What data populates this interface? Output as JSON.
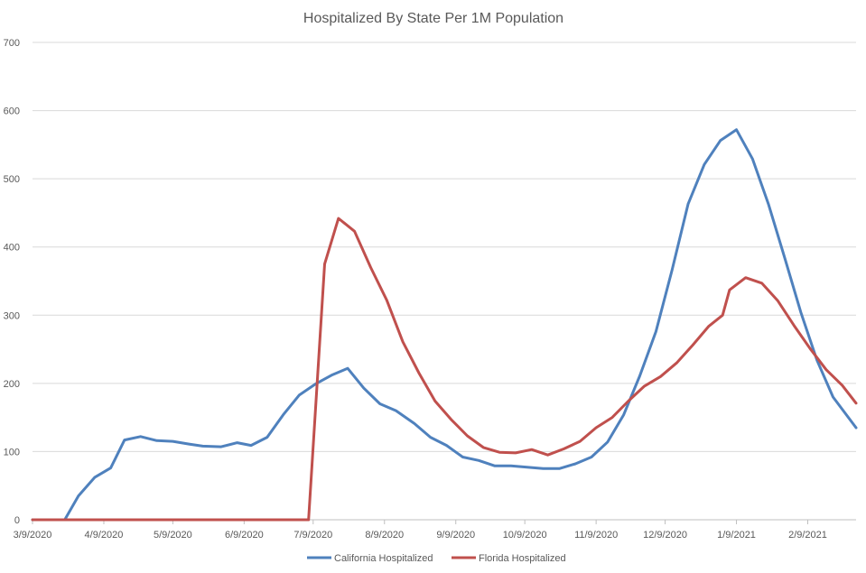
{
  "chart_data": {
    "type": "line",
    "title": "Hospitalized By State Per 1M Population",
    "xlabel": "",
    "ylabel": "",
    "ylim": [
      0,
      700
    ],
    "y_ticks": [
      "0",
      "100",
      "200",
      "300",
      "400",
      "500",
      "600",
      "700"
    ],
    "x_range": [
      "2020-03-09",
      "2021-03-02"
    ],
    "x_ticks": [
      {
        "label": "3/9/2020",
        "date": "2020-03-09"
      },
      {
        "label": "4/9/2020",
        "date": "2020-04-09"
      },
      {
        "label": "5/9/2020",
        "date": "2020-05-09"
      },
      {
        "label": "6/9/2020",
        "date": "2020-06-09"
      },
      {
        "label": "7/9/2020",
        "date": "2020-07-09"
      },
      {
        "label": "8/9/2020",
        "date": "2020-08-09"
      },
      {
        "label": "9/9/2020",
        "date": "2020-09-09"
      },
      {
        "label": "10/9/2020",
        "date": "2020-10-09"
      },
      {
        "label": "11/9/2020",
        "date": "2020-11-09"
      },
      {
        "label": "12/9/2020",
        "date": "2020-12-09"
      },
      {
        "label": "1/9/2021",
        "date": "2021-01-09"
      },
      {
        "label": "2/9/2021",
        "date": "2021-02-09"
      }
    ],
    "grid": true,
    "legend_position": "bottom",
    "series": [
      {
        "name": "California Hospitalized",
        "color": "#4f81bd",
        "points": [
          [
            "2020-03-09",
            0
          ],
          [
            "2020-03-16",
            0
          ],
          [
            "2020-03-23",
            0
          ],
          [
            "2020-03-29",
            35
          ],
          [
            "2020-04-05",
            62
          ],
          [
            "2020-04-12",
            76
          ],
          [
            "2020-04-18",
            117
          ],
          [
            "2020-04-25",
            122
          ],
          [
            "2020-05-02",
            116
          ],
          [
            "2020-05-09",
            115
          ],
          [
            "2020-05-16",
            111
          ],
          [
            "2020-05-22",
            108
          ],
          [
            "2020-05-30",
            107
          ],
          [
            "2020-06-06",
            113
          ],
          [
            "2020-06-12",
            109
          ],
          [
            "2020-06-19",
            121
          ],
          [
            "2020-06-26",
            154
          ],
          [
            "2020-07-03",
            183
          ],
          [
            "2020-07-10",
            199
          ],
          [
            "2020-07-17",
            212
          ],
          [
            "2020-07-24",
            222
          ],
          [
            "2020-07-31",
            193
          ],
          [
            "2020-08-07",
            170
          ],
          [
            "2020-08-14",
            160
          ],
          [
            "2020-08-22",
            141
          ],
          [
            "2020-08-29",
            121
          ],
          [
            "2020-09-05",
            109
          ],
          [
            "2020-09-12",
            92
          ],
          [
            "2020-09-19",
            87
          ],
          [
            "2020-09-26",
            79
          ],
          [
            "2020-10-03",
            79
          ],
          [
            "2020-10-10",
            77
          ],
          [
            "2020-10-17",
            75
          ],
          [
            "2020-10-24",
            75
          ],
          [
            "2020-10-31",
            82
          ],
          [
            "2020-11-07",
            92
          ],
          [
            "2020-11-14",
            114
          ],
          [
            "2020-11-21",
            154
          ],
          [
            "2020-11-28",
            211
          ],
          [
            "2020-12-05",
            276
          ],
          [
            "2020-12-12",
            366
          ],
          [
            "2020-12-19",
            463
          ],
          [
            "2020-12-26",
            521
          ],
          [
            "2021-01-02",
            556
          ],
          [
            "2021-01-09",
            572
          ],
          [
            "2021-01-16",
            529
          ],
          [
            "2021-01-23",
            462
          ],
          [
            "2021-01-30",
            384
          ],
          [
            "2021-02-06",
            304
          ],
          [
            "2021-02-13",
            234
          ],
          [
            "2021-02-20",
            180
          ],
          [
            "2021-03-02",
            135
          ]
        ]
      },
      {
        "name": "Florida Hospitalized",
        "color": "#c0504d",
        "points": [
          [
            "2020-03-09",
            0
          ],
          [
            "2020-04-09",
            0
          ],
          [
            "2020-05-09",
            0
          ],
          [
            "2020-06-09",
            0
          ],
          [
            "2020-07-07",
            0
          ],
          [
            "2020-07-14",
            375
          ],
          [
            "2020-07-20",
            442
          ],
          [
            "2020-07-27",
            423
          ],
          [
            "2020-08-03",
            370
          ],
          [
            "2020-08-10",
            322
          ],
          [
            "2020-08-17",
            261
          ],
          [
            "2020-08-24",
            215
          ],
          [
            "2020-08-31",
            174
          ],
          [
            "2020-09-07",
            147
          ],
          [
            "2020-09-14",
            123
          ],
          [
            "2020-09-21",
            106
          ],
          [
            "2020-09-28",
            99
          ],
          [
            "2020-10-05",
            98
          ],
          [
            "2020-10-12",
            103
          ],
          [
            "2020-10-19",
            95
          ],
          [
            "2020-10-26",
            104
          ],
          [
            "2020-11-02",
            115
          ],
          [
            "2020-11-09",
            135
          ],
          [
            "2020-11-16",
            150
          ],
          [
            "2020-11-23",
            174
          ],
          [
            "2020-11-30",
            196
          ],
          [
            "2020-12-07",
            210
          ],
          [
            "2020-12-14",
            230
          ],
          [
            "2020-12-21",
            256
          ],
          [
            "2020-12-28",
            284
          ],
          [
            "2021-01-03",
            300
          ],
          [
            "2021-01-06",
            337
          ],
          [
            "2021-01-13",
            355
          ],
          [
            "2021-01-20",
            347
          ],
          [
            "2021-01-27",
            321
          ],
          [
            "2021-02-03",
            285
          ],
          [
            "2021-02-10",
            251
          ],
          [
            "2021-02-17",
            220
          ],
          [
            "2021-02-24",
            197
          ],
          [
            "2021-03-02",
            171
          ]
        ]
      }
    ]
  }
}
